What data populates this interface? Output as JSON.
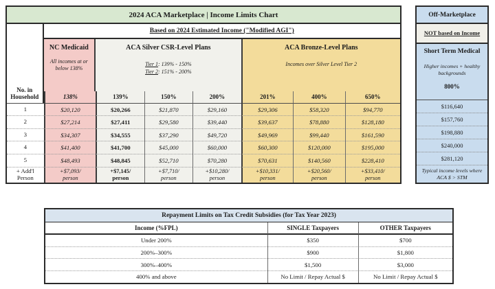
{
  "colors": {
    "header_green": "#d8e8d0",
    "medicaid_pink": "#f4cbc8",
    "silver_gray": "#f1f1ec",
    "bronze_gold": "#f3dc9b",
    "off_market_blue": "#c9dcee",
    "repayment_header_blue": "#d9e4ef"
  },
  "main_chart": {
    "title": "2024 ACA Marketplace | Income Limits Chart",
    "subtitle": "Based on 2024 Estimated Income (\"Modified AGI\")",
    "row_axis_label": "No. in Household",
    "groups": {
      "medicaid": {
        "title": "NC Medicaid",
        "note": "All incomes at or below 138%"
      },
      "silver": {
        "title": "ACA Silver CSR-Level Plans",
        "tier1_label": "Tier 1",
        "tier1_rest": ": 139% - 150%",
        "tier2_label": "Tier 2",
        "tier2_rest": ": 151% - 200%"
      },
      "bronze": {
        "title": "ACA Bronze-Level Plans",
        "note": "Incomes over Silver Level Tier 2"
      }
    },
    "columns": [
      "138%",
      "139%",
      "150%",
      "200%",
      "201%",
      "400%",
      "650%"
    ],
    "rows": [
      {
        "label": "1",
        "values": [
          "$20,120",
          "$20,266",
          "$21,870",
          "$29,160",
          "$29,306",
          "$58,320",
          "$94,770"
        ]
      },
      {
        "label": "2",
        "values": [
          "$27,214",
          "$27,411",
          "$29,580",
          "$39,440",
          "$39,637",
          "$78,880",
          "$128,180"
        ]
      },
      {
        "label": "3",
        "values": [
          "$34,307",
          "$34,555",
          "$37,290",
          "$49,720",
          "$49,969",
          "$99,440",
          "$161,590"
        ]
      },
      {
        "label": "4",
        "values": [
          "$41,400",
          "$41,700",
          "$45,000",
          "$60,000",
          "$60,300",
          "$120,000",
          "$195,000"
        ]
      },
      {
        "label": "5",
        "values": [
          "$48,493",
          "$48,845",
          "$52,710",
          "$70,280",
          "$70,631",
          "$140,560",
          "$228,410"
        ]
      }
    ],
    "addl_row": {
      "label": "+ Add'l Person",
      "amounts": [
        "+$7,093/",
        "+$7,145/",
        "+$7,710/",
        "+$10,280/",
        "+$10,331/",
        "+$20,560/",
        "+$33,410/"
      ],
      "unit": "person"
    }
  },
  "off_marketplace": {
    "title": "Off-Marketplace",
    "subtitle": "NOT based on Income",
    "header": {
      "title": "Short Term Medical",
      "note": "Higher incomes + healthy backgrounds",
      "column": "800%"
    },
    "values": [
      "$116,640",
      "$157,760",
      "$198,880",
      "$240,000",
      "$281,120"
    ],
    "footnote": "Typical income levels where ACA $ > STM"
  },
  "repayment_table": {
    "title": "Repayment Limits on Tax Credit Subsidies (for Tax Year 2023)",
    "columns": [
      "Income (%FPL)",
      "SINGLE Taxpayers",
      "OTHER Taxpayers"
    ],
    "rows": [
      {
        "income": "Under 200%",
        "single": "$350",
        "other": "$700"
      },
      {
        "income": "200%–300%",
        "single": "$900",
        "other": "$1,800"
      },
      {
        "income": "300%–400%",
        "single": "$1,500",
        "other": "$3,000"
      },
      {
        "income": "400% and above",
        "single": "No Limit / Repay Actual $",
        "other": "No Limit / Repay Actual $"
      }
    ]
  }
}
